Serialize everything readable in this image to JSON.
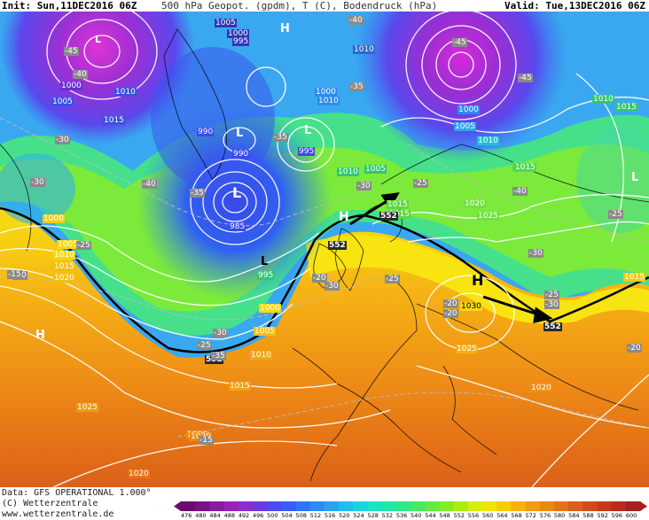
{
  "header": {
    "init": "Init: Sun,11DEC2016 06Z",
    "parameter": "500 hPa Geopot. (gpdm), T (C), Bodendruck (hPa)",
    "valid": "Valid: Tue,13DEC2016 06Z"
  },
  "footer": {
    "data_source": "Data: GFS OPERATIONAL 1.000°",
    "copyright": "(C) Wetterzentrale",
    "website": "www.wetterzentrale.de"
  },
  "legend": {
    "ticks": [
      "476",
      "480",
      "484",
      "488",
      "492",
      "496",
      "500",
      "504",
      "508",
      "512",
      "516",
      "520",
      "524",
      "528",
      "532",
      "536",
      "540",
      "544",
      "548",
      "552",
      "556",
      "560",
      "564",
      "568",
      "572",
      "576",
      "580",
      "584",
      "588",
      "592",
      "596",
      "600"
    ],
    "colors": [
      "#6e0a6e",
      "#7a0f86",
      "#8a1aa0",
      "#9a22ba",
      "#8a2ed0",
      "#6a3ae0",
      "#4a4cf0",
      "#3a5cf6",
      "#2e74f8",
      "#2a8cf6",
      "#26a4f2",
      "#22bcee",
      "#1ed2e2",
      "#1ee0c6",
      "#24e6a6",
      "#30e884",
      "#44ea62",
      "#60ec42",
      "#80ee26",
      "#a8ee14",
      "#d6ee0a",
      "#f2e40a",
      "#f8cc0e",
      "#f8b012",
      "#f49a14",
      "#ee8614",
      "#e67216",
      "#dc5e18",
      "#d24a1a",
      "#c63a1c",
      "#b82c1e",
      "#a8201e"
    ]
  },
  "labels": {
    "pressure": [
      {
        "text": "1005"
      },
      {
        "text": "1000"
      },
      {
        "text": "995"
      },
      {
        "text": "1010"
      },
      {
        "text": "1000"
      },
      {
        "text": "1005"
      },
      {
        "text": "1010"
      },
      {
        "text": "1015"
      },
      {
        "text": "990"
      },
      {
        "text": "990"
      },
      {
        "text": "995"
      },
      {
        "text": "985"
      },
      {
        "text": "1000"
      },
      {
        "text": "1005"
      },
      {
        "text": "1010"
      },
      {
        "text": "1015"
      },
      {
        "text": "1020"
      },
      {
        "text": "995"
      },
      {
        "text": "1000"
      },
      {
        "text": "1005"
      },
      {
        "text": "1010"
      },
      {
        "text": "1015"
      },
      {
        "text": "1010"
      },
      {
        "text": "1005"
      },
      {
        "text": "1015"
      },
      {
        "text": "1020"
      },
      {
        "text": "1025"
      },
      {
        "text": "1030"
      },
      {
        "text": "1025"
      },
      {
        "text": "1020"
      },
      {
        "text": "1015"
      },
      {
        "text": "1020"
      },
      {
        "text": "1025"
      },
      {
        "text": "1020"
      },
      {
        "text": "1015"
      },
      {
        "text": "1010"
      },
      {
        "text": "1015"
      },
      {
        "text": "1000"
      },
      {
        "text": "1005"
      },
      {
        "text": "1010"
      },
      {
        "text": "1015"
      },
      {
        "text": "1000"
      },
      {
        "text": "1005"
      },
      {
        "text": "1010"
      },
      {
        "text": "1020"
      }
    ],
    "geopotential": [
      {
        "text": "552"
      },
      {
        "text": "552"
      },
      {
        "text": "552"
      },
      {
        "text": "552"
      }
    ],
    "temperature": [
      {
        "text": "-45"
      },
      {
        "text": "-40"
      },
      {
        "text": "-40"
      },
      {
        "text": "-45"
      },
      {
        "text": "-35"
      },
      {
        "text": "-30"
      },
      {
        "text": "-35"
      },
      {
        "text": "-40"
      },
      {
        "text": "-35"
      },
      {
        "text": "-30"
      },
      {
        "text": "-25"
      },
      {
        "text": "-30"
      },
      {
        "text": "-25"
      },
      {
        "text": "-20"
      },
      {
        "text": "-20"
      },
      {
        "text": "-15"
      },
      {
        "text": "-25"
      },
      {
        "text": "-30"
      },
      {
        "text": "-25"
      },
      {
        "text": "-20"
      },
      {
        "text": "-35"
      },
      {
        "text": "-30"
      },
      {
        "text": "-25"
      },
      {
        "text": "-15"
      },
      {
        "text": "-20"
      },
      {
        "text": "-25"
      },
      {
        "text": "-30"
      },
      {
        "text": "-40"
      },
      {
        "text": "-45"
      },
      {
        "text": "-30"
      },
      {
        "text": "-20"
      }
    ],
    "pressure_centers": [
      {
        "text": "H"
      },
      {
        "text": "L"
      },
      {
        "text": "L"
      },
      {
        "text": "L"
      },
      {
        "text": "L"
      },
      {
        "text": "H"
      },
      {
        "text": "H"
      },
      {
        "text": "H"
      },
      {
        "text": "L"
      },
      {
        "text": "L"
      }
    ]
  }
}
